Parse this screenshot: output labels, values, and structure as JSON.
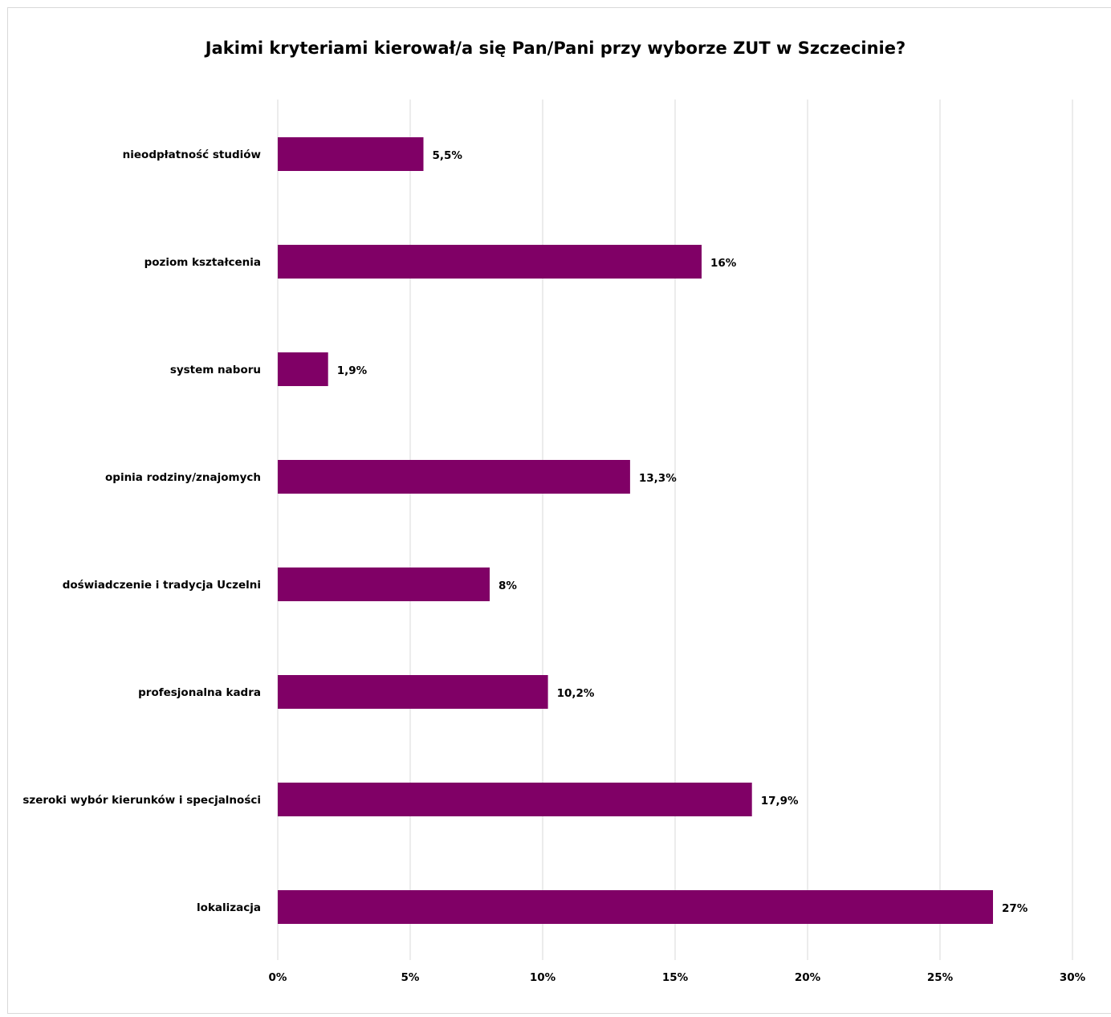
{
  "chart_data": {
    "type": "bar",
    "orientation": "horizontal",
    "title": "Jakimi kryteriami kierował/a się Pan/Pani przy wyborze ZUT w Szczecinie?",
    "categories": [
      "nieodpłatność studiów",
      "poziom kształcenia",
      "system naboru",
      "opinia rodziny/znajomych",
      "doświadczenie i tradycja Uczelni",
      "profesjonalna kadra",
      "szeroki wybór kierunków i specjalności",
      "lokalizacja"
    ],
    "values": [
      5.5,
      16,
      1.9,
      13.3,
      8,
      10.2,
      17.9,
      27
    ],
    "data_labels": [
      "5,5%",
      "16%",
      "1,9%",
      "13,3%",
      "8%",
      "10,2%",
      "17,9%",
      "27%"
    ],
    "xlim": [
      0,
      30
    ],
    "x_ticks": [
      0,
      5,
      10,
      15,
      20,
      25,
      30
    ],
    "x_tick_labels": [
      "0%",
      "5%",
      "10%",
      "15%",
      "20%",
      "25%",
      "30%"
    ],
    "grid": "vertical",
    "legend": "none",
    "bar_color": "#800066",
    "grid_color": "#d9d9d9"
  }
}
